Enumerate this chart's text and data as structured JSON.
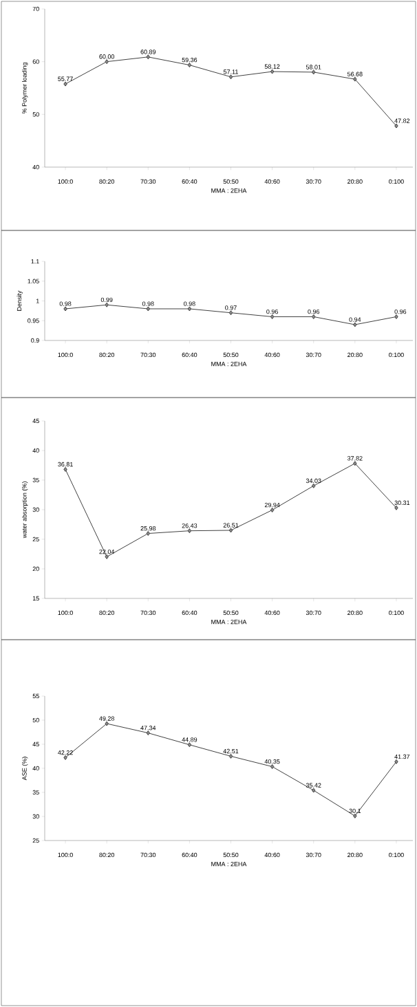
{
  "chart_data": [
    {
      "type": "line",
      "ylabel": "% Polymer loading",
      "xlabel": "MMA : 2EHA",
      "categories": [
        "100:0",
        "80:20",
        "70:30",
        "60:40",
        "50:50",
        "40:60",
        "30:70",
        "20:80",
        "0:100"
      ],
      "values": [
        55.77,
        60.0,
        60.89,
        59.36,
        57.11,
        58.12,
        58.01,
        56.68,
        47.82
      ],
      "value_labels": [
        "55.77",
        "60.00",
        "60.89",
        "59.36",
        "57.11",
        "58.12",
        "58.01",
        "56.68",
        "47.82"
      ],
      "color": "#404040",
      "marker": "diamond",
      "line_style": "solid",
      "ylim": [
        40,
        70
      ],
      "yticks": [
        40,
        50,
        60,
        70
      ]
    },
    {
      "type": "line",
      "ylabel": "Density",
      "xlabel": "MMA : 2EHA",
      "categories": [
        "100:0",
        "80:20",
        "70:30",
        "60:40",
        "50:50",
        "40:60",
        "30:70",
        "20:80",
        "0:100"
      ],
      "values": [
        0.98,
        0.99,
        0.98,
        0.98,
        0.97,
        0.96,
        0.96,
        0.94,
        0.96
      ],
      "value_labels": [
        "0.98",
        "0.99",
        "0.98",
        "0.98",
        "0.97",
        "0.96",
        "0.96",
        "0.94",
        "0.96"
      ],
      "color": "#404040",
      "marker": "diamond",
      "line_style": "solid",
      "ylim": [
        0.9,
        1.1
      ],
      "yticks": [
        0.9,
        0.95,
        1,
        1.05,
        1.1
      ]
    },
    {
      "type": "line",
      "ylabel": "water absorption (%)",
      "xlabel": "MMA : 2EHA",
      "categories": [
        "100:0",
        "80:20",
        "70:30",
        "60:40",
        "50:50",
        "40:60",
        "30:70",
        "20:80",
        "0:100"
      ],
      "values": [
        36.81,
        22.04,
        25.98,
        26.43,
        26.51,
        29.94,
        34.03,
        37.82,
        30.31
      ],
      "value_labels": [
        "36.81",
        "22.04",
        "25.98",
        "26.43",
        "26.51",
        "29.94",
        "34.03",
        "37.82",
        "30.31"
      ],
      "color": "#404040",
      "marker": "diamond",
      "line_style": "solid",
      "ylim": [
        15,
        45
      ],
      "yticks": [
        15,
        20,
        25,
        30,
        35,
        40,
        45
      ]
    },
    {
      "type": "line",
      "ylabel": "ASE (%)",
      "xlabel": "MMA : 2EHA",
      "categories": [
        "100:0",
        "80:20",
        "70:30",
        "60:40",
        "50:50",
        "40:60",
        "30:70",
        "20:80",
        "0:100"
      ],
      "values": [
        42.22,
        49.28,
        47.34,
        44.89,
        42.51,
        40.35,
        35.42,
        30.1,
        41.37
      ],
      "value_labels": [
        "42.22",
        "49.28",
        "47.34",
        "44.89",
        "42.51",
        "40.35",
        "35.42",
        "30.1",
        "41.37"
      ],
      "color": "#404040",
      "marker": "diamond",
      "line_style": "solid",
      "ylim": [
        25,
        55
      ],
      "yticks": [
        25,
        30,
        35,
        40,
        45,
        50,
        55
      ]
    }
  ]
}
